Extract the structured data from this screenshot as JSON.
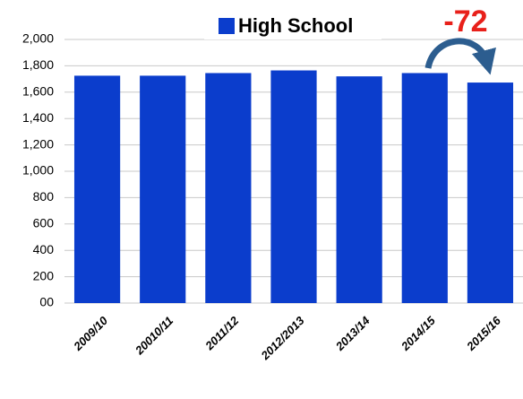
{
  "chart_data": {
    "type": "bar",
    "legend": "High School",
    "annotation": "-72",
    "categories": [
      "2009/10",
      "20010/11",
      "2011/12",
      "2012/2013",
      "2013/14",
      "2014/15",
      "2015/16"
    ],
    "values": [
      1725,
      1725,
      1745,
      1765,
      1720,
      1745,
      1673
    ],
    "color": "#0b3dcc",
    "ylim": [
      0,
      2000
    ],
    "yticks": [
      {
        "value": 0,
        "label": "00"
      },
      200,
      400,
      600,
      800,
      {
        "value": 1000,
        "label": "1,000"
      },
      {
        "value": 1200,
        "label": "1,200"
      },
      {
        "value": 1400,
        "label": "1,400"
      },
      {
        "value": 1600,
        "label": "1,600"
      },
      {
        "value": 1800,
        "label": "1,800"
      },
      {
        "value": 2000,
        "label": "2,000"
      }
    ],
    "grid": true
  }
}
